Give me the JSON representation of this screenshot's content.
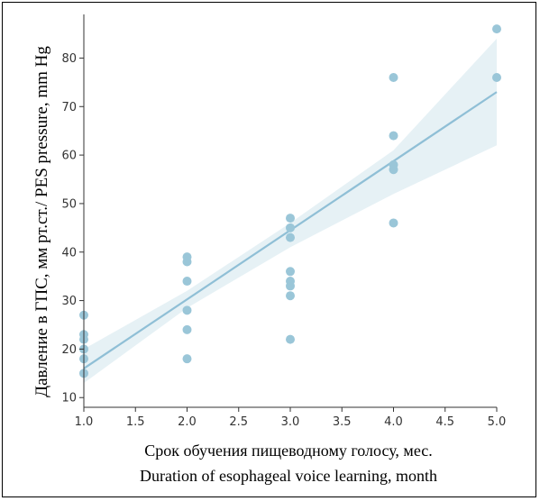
{
  "chart_data": {
    "type": "scatter",
    "title": "",
    "xlabel_line1": "Срок обучения пищеводному голосу, мес.",
    "xlabel_line2": "Duration of esophageal voice learning, month",
    "ylabel": "Давление в ГПС, мм рт.ст./ PES pressure, mm Hg",
    "xlim": [
      1.0,
      5.0
    ],
    "ylim": [
      8,
      89
    ],
    "x_ticks": [
      1.0,
      1.5,
      2.0,
      2.5,
      3.0,
      3.5,
      4.0,
      4.5,
      5.0
    ],
    "x_tick_labels": [
      "1.0",
      "1.5",
      "2.0",
      "2.5",
      "3.0",
      "3.5",
      "4.0",
      "4.5",
      "5.0"
    ],
    "y_ticks": [
      10,
      20,
      30,
      40,
      50,
      60,
      70,
      80
    ],
    "y_tick_labels": [
      "10",
      "20",
      "30",
      "40",
      "50",
      "60",
      "70",
      "80"
    ],
    "grid": false,
    "points": [
      {
        "x": 1.0,
        "y": 27
      },
      {
        "x": 1.0,
        "y": 23
      },
      {
        "x": 1.0,
        "y": 22
      },
      {
        "x": 1.0,
        "y": 20
      },
      {
        "x": 1.0,
        "y": 18
      },
      {
        "x": 1.0,
        "y": 15
      },
      {
        "x": 2.0,
        "y": 39
      },
      {
        "x": 2.0,
        "y": 38
      },
      {
        "x": 2.0,
        "y": 34
      },
      {
        "x": 2.0,
        "y": 28
      },
      {
        "x": 2.0,
        "y": 24
      },
      {
        "x": 2.0,
        "y": 18
      },
      {
        "x": 3.0,
        "y": 47
      },
      {
        "x": 3.0,
        "y": 45
      },
      {
        "x": 3.0,
        "y": 43
      },
      {
        "x": 3.0,
        "y": 36
      },
      {
        "x": 3.0,
        "y": 34
      },
      {
        "x": 3.0,
        "y": 33
      },
      {
        "x": 3.0,
        "y": 31
      },
      {
        "x": 3.0,
        "y": 22
      },
      {
        "x": 4.0,
        "y": 76
      },
      {
        "x": 4.0,
        "y": 64
      },
      {
        "x": 4.0,
        "y": 58
      },
      {
        "x": 4.0,
        "y": 57
      },
      {
        "x": 4.0,
        "y": 46
      },
      {
        "x": 5.0,
        "y": 86
      },
      {
        "x": 5.0,
        "y": 76
      }
    ],
    "regression": {
      "x": [
        1.0,
        5.0
      ],
      "y": [
        16.0,
        73.0
      ]
    },
    "confidence_band": {
      "x": [
        1.0,
        2.0,
        3.0,
        4.0,
        5.0
      ],
      "upper": [
        20.0,
        32.0,
        46.0,
        61.0,
        84.0
      ],
      "lower": [
        13.0,
        28.5,
        41.0,
        52.0,
        62.0
      ]
    },
    "colors": {
      "point": "#9ac6d8",
      "line": "#8fbfd6",
      "band": "#e6f1f5",
      "axis": "#333333"
    }
  }
}
